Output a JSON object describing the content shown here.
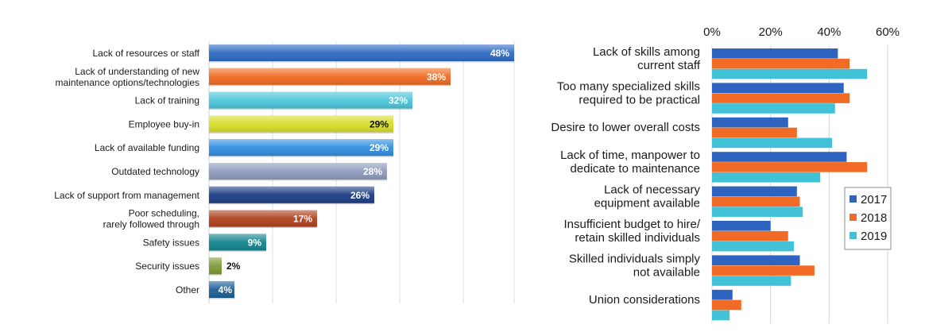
{
  "chart_data": [
    {
      "type": "bar",
      "orientation": "horizontal",
      "title": "",
      "xlabel": "",
      "ylabel": "",
      "xlim": [
        0,
        48
      ],
      "grid": true,
      "categories": [
        "Lack of resources or staff",
        "Lack of understanding of new\nmaintenance options/technologies",
        "Lack of training",
        "Employee buy-in",
        "Lack of available funding",
        "Outdated technology",
        "Lack of support from management",
        "Poor scheduling,\nrarely followed through",
        "Safety issues",
        "Security issues",
        "Other"
      ],
      "values": [
        48,
        38,
        32,
        29,
        29,
        28,
        26,
        17,
        9,
        2,
        4
      ],
      "value_labels": [
        "48%",
        "38%",
        "32%",
        "29%",
        "29%",
        "28%",
        "26%",
        "17%",
        "9%",
        "2%",
        "4%"
      ],
      "colors": [
        "#2f6bc4",
        "#f06b22",
        "#4cc5d9",
        "#d8dd2a",
        "#2f8fe0",
        "#8e9bbd",
        "#1d3d84",
        "#b0421f",
        "#14858d",
        "#7d9a37",
        "#1d5f96"
      ],
      "label_colors": [
        "#ffffff",
        "#ffffff",
        "#ffffff",
        "#111111",
        "#ffffff",
        "#ffffff",
        "#ffffff",
        "#ffffff",
        "#ffffff",
        "#111111",
        "#ffffff"
      ]
    },
    {
      "type": "bar",
      "orientation": "horizontal",
      "title": "",
      "xlabel": "",
      "ylabel": "",
      "xlim": [
        0,
        60
      ],
      "xticks": [
        0,
        20,
        40,
        60
      ],
      "xtick_labels": [
        "0%",
        "20%",
        "40%",
        "60%"
      ],
      "legend_position": "right",
      "categories": [
        "Lack of skills among\ncurrent staff",
        "Too many specialized skills\nrequired to be practical",
        "Desire to lower overall costs",
        "Lack of time, manpower to\ndedicate to maintenance",
        "Lack of necessary\nequipment available",
        "Insufficient budget to hire/\nretain skilled individuals",
        "Skilled individuals simply\nnot available",
        "Union considerations"
      ],
      "series": [
        {
          "name": "2017",
          "color": "#2f63c0",
          "values": [
            43,
            45,
            26,
            46,
            29,
            20,
            30,
            7
          ]
        },
        {
          "name": "2018",
          "color": "#f26b26",
          "values": [
            47,
            47,
            29,
            53,
            30,
            26,
            35,
            10
          ]
        },
        {
          "name": "2019",
          "color": "#42c2d6",
          "values": [
            53,
            42,
            41,
            37,
            31,
            28,
            27,
            6
          ]
        }
      ]
    }
  ]
}
